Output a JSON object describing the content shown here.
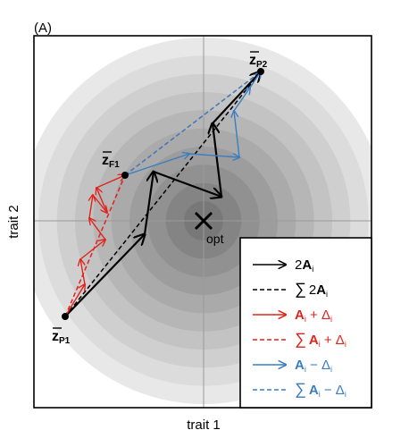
{
  "panel_label": "(A)",
  "axes": {
    "xlabel": "trait 1",
    "ylabel": "trait 2"
  },
  "points": {
    "p1": {
      "symbol": "z",
      "sub": "P1"
    },
    "p2": {
      "symbol": "z",
      "sub": "P2"
    },
    "f1": {
      "symbol": "z",
      "sub": "F1"
    },
    "opt": "opt"
  },
  "legend": [
    {
      "kind": "solid",
      "color": "#000000",
      "label_html": "2<tspan font-weight='bold'>A</tspan><tspan font-size='9' dy='3'>i</tspan>"
    },
    {
      "kind": "dashed",
      "color": "#000000",
      "label_html": "<tspan font-size='18'>∑</tspan><tspan dx='3'>2</tspan><tspan font-weight='bold'>A</tspan><tspan font-size='9' dy='3'>i</tspan>"
    },
    {
      "kind": "solid",
      "color": "#e0231c",
      "label_html": "<tspan font-weight='bold'>A</tspan><tspan font-size='9' dy='3'>i</tspan><tspan dy='-3'> + Δ</tspan><tspan font-size='9' dy='3'>i</tspan>"
    },
    {
      "kind": "dashed",
      "color": "#e0231c",
      "label_html": "<tspan font-size='18'>∑</tspan><tspan dx='3' font-weight='bold'>A</tspan><tspan font-size='9' dy='3'>i</tspan><tspan dy='-3'> + Δ</tspan><tspan font-size='9' dy='3'>i</tspan>"
    },
    {
      "kind": "solid",
      "color": "#3a7dc1",
      "label_html": "<tspan font-weight='bold'>A</tspan><tspan font-size='9' dy='3'>i</tspan><tspan dy='-3'> − Δ</tspan><tspan font-size='9' dy='3'>i</tspan>"
    },
    {
      "kind": "dashed",
      "color": "#3a7dc1",
      "label_html": "<tspan font-size='18'>∑</tspan><tspan dx='3' font-weight='bold'>A</tspan><tspan font-size='9' dy='3'>i</tspan><tspan dy='-3'> − Δ</tspan><tspan font-size='9' dy='3'>i</tspan>"
    }
  ],
  "colors": {
    "black": "#000000",
    "red": "#e0231c",
    "blue": "#3a7dc1"
  }
}
